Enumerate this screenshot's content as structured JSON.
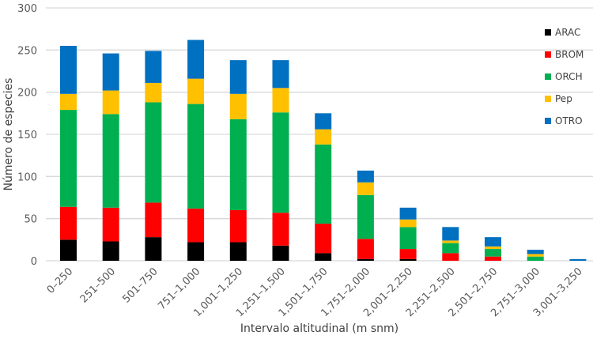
{
  "chart_data": {
    "type": "bar",
    "stacked": true,
    "xlabel": "Intervalo altitudinal (m snm)",
    "ylabel": "Número de especies",
    "ylim": [
      0,
      300
    ],
    "yticks": [
      0,
      50,
      100,
      150,
      200,
      250,
      300
    ],
    "grid": true,
    "legend_position": "right",
    "categories": [
      "0–250",
      "251–500",
      "501–750",
      "751–1,000",
      "1,001–1,250",
      "1,251–1,500",
      "1,501–1,750",
      "1,751–2,000",
      "2,001–2,250",
      "2,251–2,500",
      "2,501–2,750",
      "2,751–3,000",
      "3,001–3,250"
    ],
    "series": [
      {
        "name": "ARAC",
        "color": "#000000",
        "values": [
          25,
          23,
          28,
          22,
          22,
          18,
          9,
          2,
          2,
          0,
          0,
          0,
          0
        ]
      },
      {
        "name": "BROM",
        "color": "#FF0000",
        "values": [
          39,
          40,
          41,
          40,
          38,
          39,
          35,
          24,
          12,
          9,
          5,
          0,
          0
        ]
      },
      {
        "name": "ORCH",
        "color": "#00B050",
        "values": [
          115,
          111,
          119,
          124,
          108,
          119,
          94,
          52,
          26,
          12,
          9,
          5,
          0
        ]
      },
      {
        "name": "Pep",
        "color": "#FFC000",
        "values": [
          19,
          28,
          23,
          30,
          30,
          29,
          18,
          15,
          9,
          3,
          3,
          3,
          0
        ]
      },
      {
        "name": "OTRO",
        "color": "#0070C0",
        "values": [
          57,
          44,
          38,
          46,
          40,
          33,
          19,
          14,
          14,
          16,
          11,
          5,
          2
        ]
      }
    ]
  }
}
